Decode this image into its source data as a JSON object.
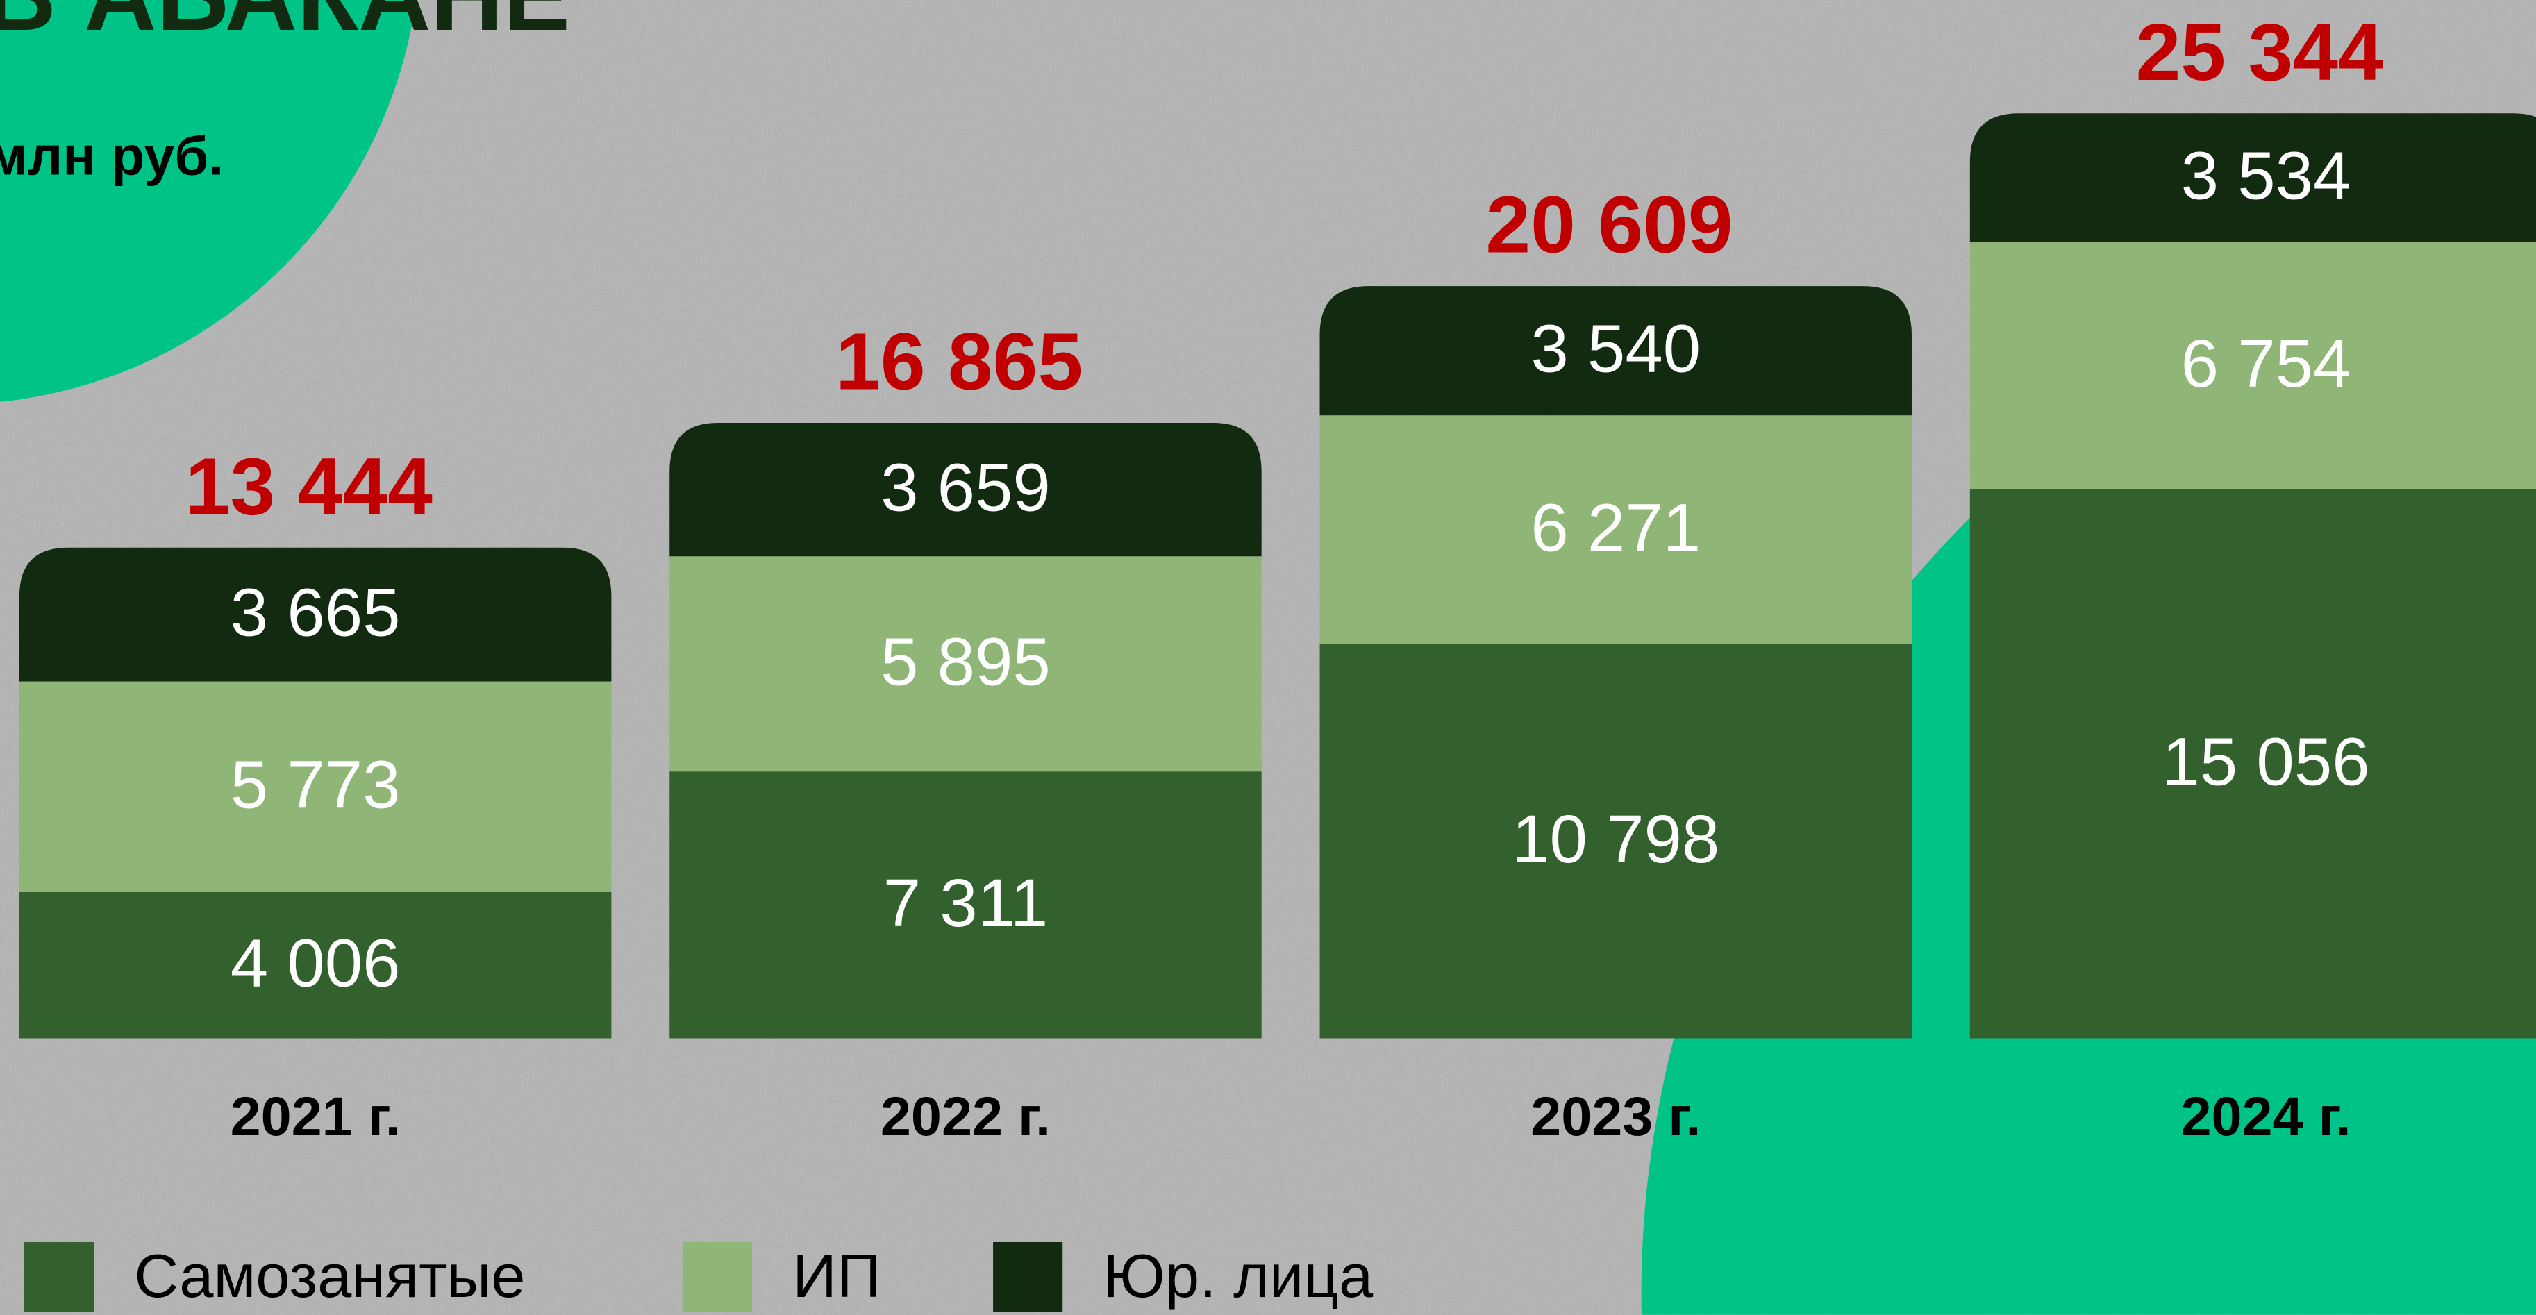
{
  "chart_data": {
    "type": "stacked_bar",
    "title": "В АБАКАНЕ",
    "subtitle": "млн руб.",
    "categories": [
      "2021 г.",
      "2022 г.",
      "2023 г.",
      "2024 г."
    ],
    "series": [
      {
        "name": "Самозанятые",
        "color": "#33612d",
        "values": [
          4006,
          7311,
          10798,
          15056
        ],
        "value_labels": [
          "4 006",
          "7 311",
          "10 798",
          "15 056"
        ]
      },
      {
        "name": "ИП",
        "color": "#8fb577",
        "values": [
          5773,
          5895,
          6271,
          6754
        ],
        "value_labels": [
          "5 773",
          "5 895",
          "6 271",
          "6 754"
        ]
      },
      {
        "name": "Юр. лица",
        "color": "#112a10",
        "values": [
          3665,
          3659,
          3540,
          3534
        ],
        "value_labels": [
          "3 665",
          "3 659",
          "3 540",
          "3 534"
        ]
      }
    ],
    "total_labels": [
      "13 444",
      "16 865",
      "20 609",
      "25 344"
    ],
    "total_color": "#c00000"
  }
}
